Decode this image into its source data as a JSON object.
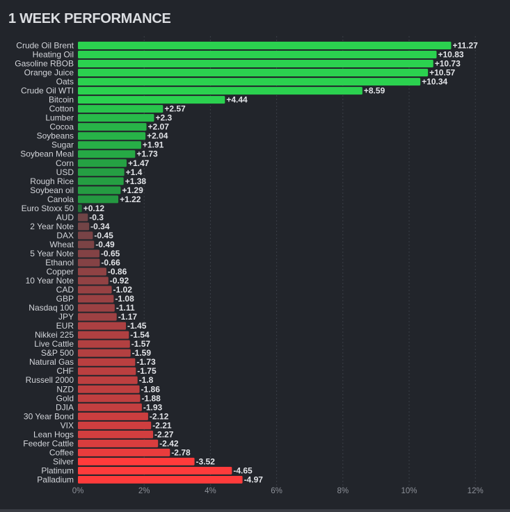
{
  "title": "1 WEEK PERFORMANCE",
  "chart_data": {
    "type": "bar",
    "orientation": "horizontal",
    "title": "1 WEEK PERFORMANCE",
    "xlabel": "",
    "ylabel": "",
    "xlim": [
      0,
      12
    ],
    "xticks": [
      "0%",
      "2%",
      "4%",
      "6%",
      "8%",
      "10%",
      "12%"
    ],
    "grid": "vertical-dashed",
    "positive_color_range": [
      "#1f6b36",
      "#2bd14f"
    ],
    "negative_color_range": [
      "#5a4548",
      "#ff3b3b"
    ],
    "categories": [
      "Crude Oil Brent",
      "Heating Oil",
      "Gasoline RBOB",
      "Orange Juice",
      "Oats",
      "Crude Oil WTI",
      "Bitcoin",
      "Cotton",
      "Lumber",
      "Cocoa",
      "Soybeans",
      "Sugar",
      "Soybean Meal",
      "Corn",
      "USD",
      "Rough Rice",
      "Soybean oil",
      "Canola",
      "Euro Stoxx 50",
      "AUD",
      "2 Year Note",
      "DAX",
      "Wheat",
      "5 Year Note",
      "Ethanol",
      "Copper",
      "10 Year Note",
      "CAD",
      "GBP",
      "Nasdaq 100",
      "JPY",
      "EUR",
      "Nikkei 225",
      "Live Cattle",
      "S&P 500",
      "Natural Gas",
      "CHF",
      "Russell 2000",
      "NZD",
      "Gold",
      "DJIA",
      "30 Year Bond",
      "VIX",
      "Lean Hogs",
      "Feeder Cattle",
      "Coffee",
      "Silver",
      "Platinum",
      "Palladium"
    ],
    "values": [
      11.27,
      10.83,
      10.73,
      10.57,
      10.34,
      8.59,
      4.44,
      2.57,
      2.3,
      2.07,
      2.04,
      1.91,
      1.73,
      1.47,
      1.4,
      1.38,
      1.29,
      1.22,
      0.12,
      -0.3,
      -0.34,
      -0.45,
      -0.49,
      -0.65,
      -0.66,
      -0.86,
      -0.92,
      -1.02,
      -1.08,
      -1.11,
      -1.17,
      -1.45,
      -1.54,
      -1.57,
      -1.59,
      -1.73,
      -1.75,
      -1.8,
      -1.86,
      -1.88,
      -1.93,
      -2.12,
      -2.21,
      -2.27,
      -2.42,
      -2.78,
      -3.52,
      -4.65,
      -4.97
    ],
    "value_labels": [
      "+11.27",
      "+10.83",
      "+10.73",
      "+10.57",
      "+10.34",
      "+8.59",
      "+4.44",
      "+2.57",
      "+2.3",
      "+2.07",
      "+2.04",
      "+1.91",
      "+1.73",
      "+1.47",
      "+1.4",
      "+1.38",
      "+1.29",
      "+1.22",
      "+0.12",
      "-0.3",
      "-0.34",
      "-0.45",
      "-0.49",
      "-0.65",
      "-0.66",
      "-0.86",
      "-0.92",
      "-1.02",
      "-1.08",
      "-1.11",
      "-1.17",
      "-1.45",
      "-1.54",
      "-1.57",
      "-1.59",
      "-1.73",
      "-1.75",
      "-1.8",
      "-1.86",
      "-1.88",
      "-1.93",
      "-2.12",
      "-2.21",
      "-2.27",
      "-2.42",
      "-2.78",
      "-3.52",
      "-4.65",
      "-4.97"
    ],
    "bar_length": "absolute value"
  }
}
